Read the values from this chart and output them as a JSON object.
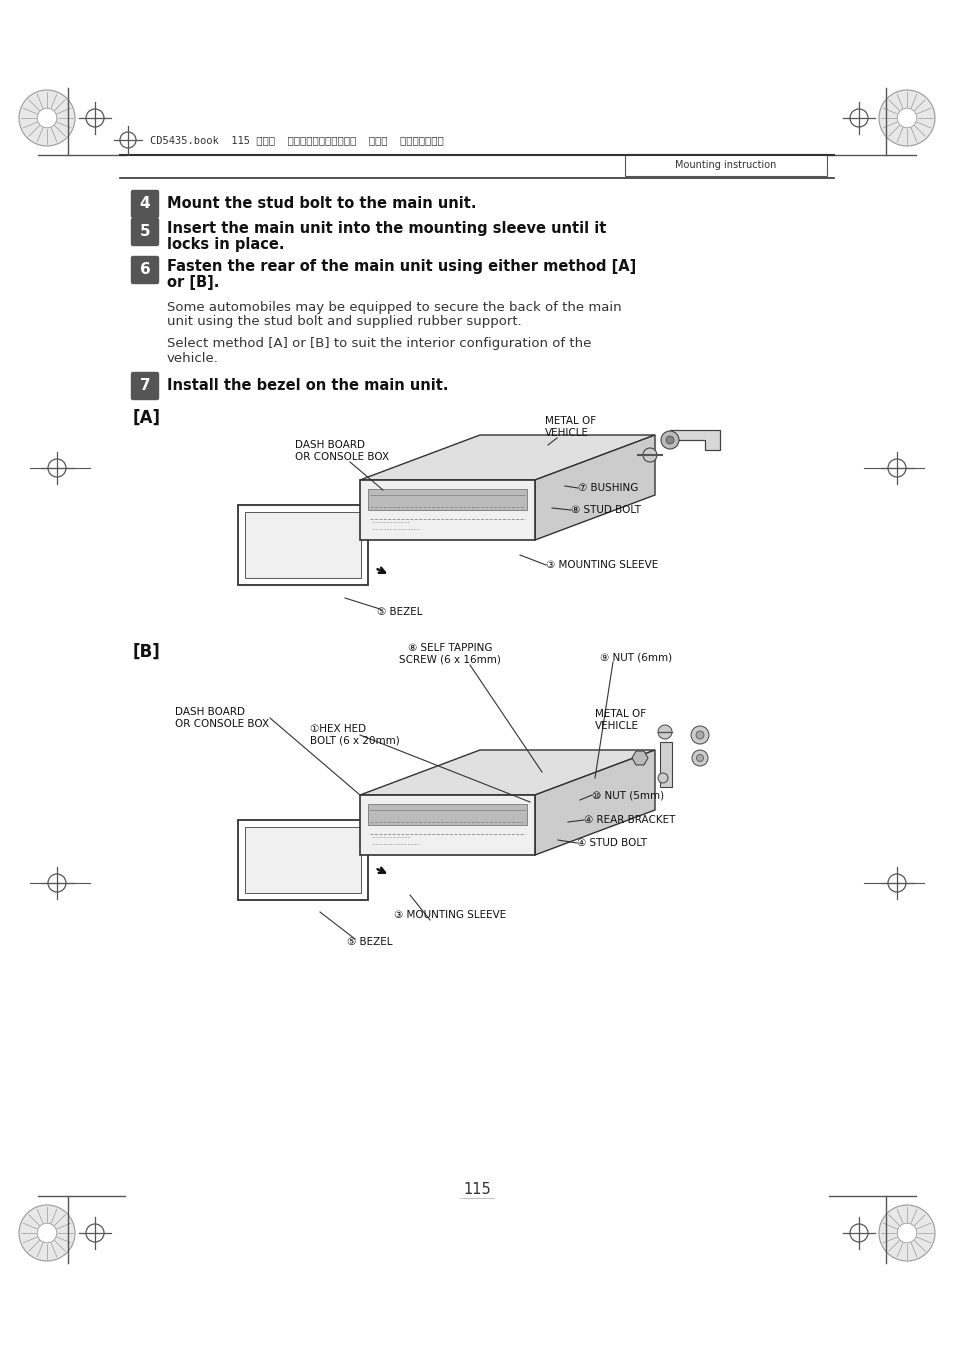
{
  "bg_color": "#ffffff",
  "page_width": 9.54,
  "page_height": 13.51,
  "header_text": "CD5435.book  115 ページ  ２００４年１２月１１日  土曜日  午後５時２９分",
  "section_label": "Mounting instruction",
  "step4_text": "Mount the stud bolt to the main unit.",
  "step5_line1": "Insert the main unit into the mounting sleeve until it",
  "step5_line2": "locks in place.",
  "step6_line1": "Fasten the rear of the main unit using either method [A]",
  "step6_line2": "or [B].",
  "para1_line1": "Some automobiles may be equipped to secure the back of the main",
  "para1_line2": "unit using the stud bolt and supplied rubber support.",
  "para2_line1": "Select method [A] or [B] to suit the interior configuration of the",
  "para2_line2": "vehicle.",
  "step7_text": "Install the bezel on the main unit.",
  "label_A": "[A]",
  "label_B": "[B]",
  "page_number": "115"
}
